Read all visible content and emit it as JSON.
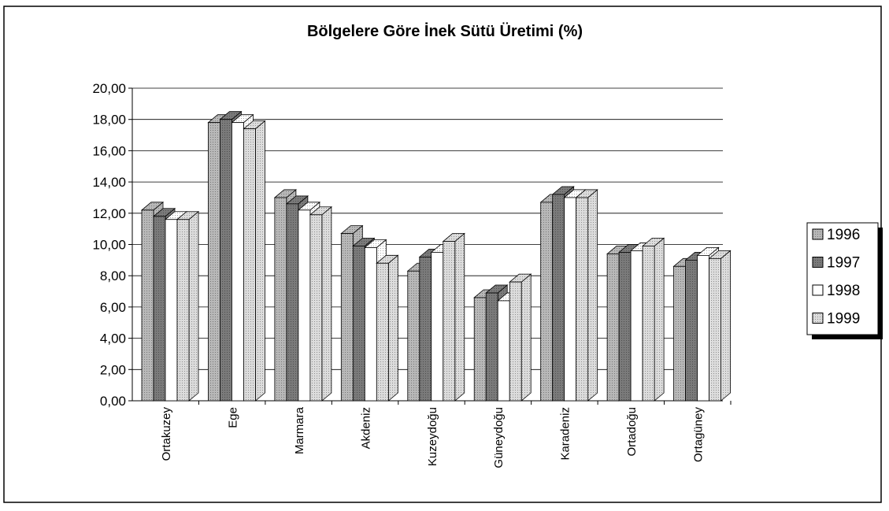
{
  "chart_data": {
    "type": "bar3d",
    "title": "Bölgelere Göre İnek Sütü Üretimi (%)",
    "categories": [
      "Ortakuzey",
      "Ege",
      "Marmara",
      "Akdeniz",
      "Kuzeydoğu",
      "Güneydoğu",
      "Karadeniz",
      "Ortadoğu",
      "Ortagüney"
    ],
    "series": [
      {
        "name": "1996",
        "color": "#b8b8b8",
        "values": [
          12.2,
          17.8,
          13.0,
          10.7,
          8.3,
          6.6,
          12.7,
          9.4,
          8.6
        ]
      },
      {
        "name": "1997",
        "color": "#7a7a7a",
        "values": [
          11.8,
          18.0,
          12.6,
          9.9,
          9.2,
          6.9,
          13.2,
          9.5,
          9.0
        ]
      },
      {
        "name": "1998",
        "color": "#ffffff",
        "values": [
          11.6,
          17.8,
          12.2,
          9.8,
          9.5,
          6.4,
          13.0,
          9.6,
          9.3
        ]
      },
      {
        "name": "1999",
        "color": "#dcdcdc",
        "values": [
          11.6,
          17.4,
          11.9,
          8.8,
          10.2,
          7.6,
          13.0,
          9.9,
          9.1
        ]
      }
    ],
    "ylim": [
      0,
      20
    ],
    "yticks": [
      {
        "value": 0,
        "label": "0,00"
      },
      {
        "value": 2,
        "label": "2,00"
      },
      {
        "value": 4,
        "label": "4,00"
      },
      {
        "value": 6,
        "label": "6,00"
      },
      {
        "value": 8,
        "label": "8,00"
      },
      {
        "value": 10,
        "label": "10,00"
      },
      {
        "value": 12,
        "label": "12,00"
      },
      {
        "value": 14,
        "label": "14,00"
      },
      {
        "value": 16,
        "label": "16,00"
      },
      {
        "value": 18,
        "label": "18,00"
      },
      {
        "value": 20,
        "label": "20,00"
      }
    ],
    "grid": true,
    "legend": "right"
  }
}
